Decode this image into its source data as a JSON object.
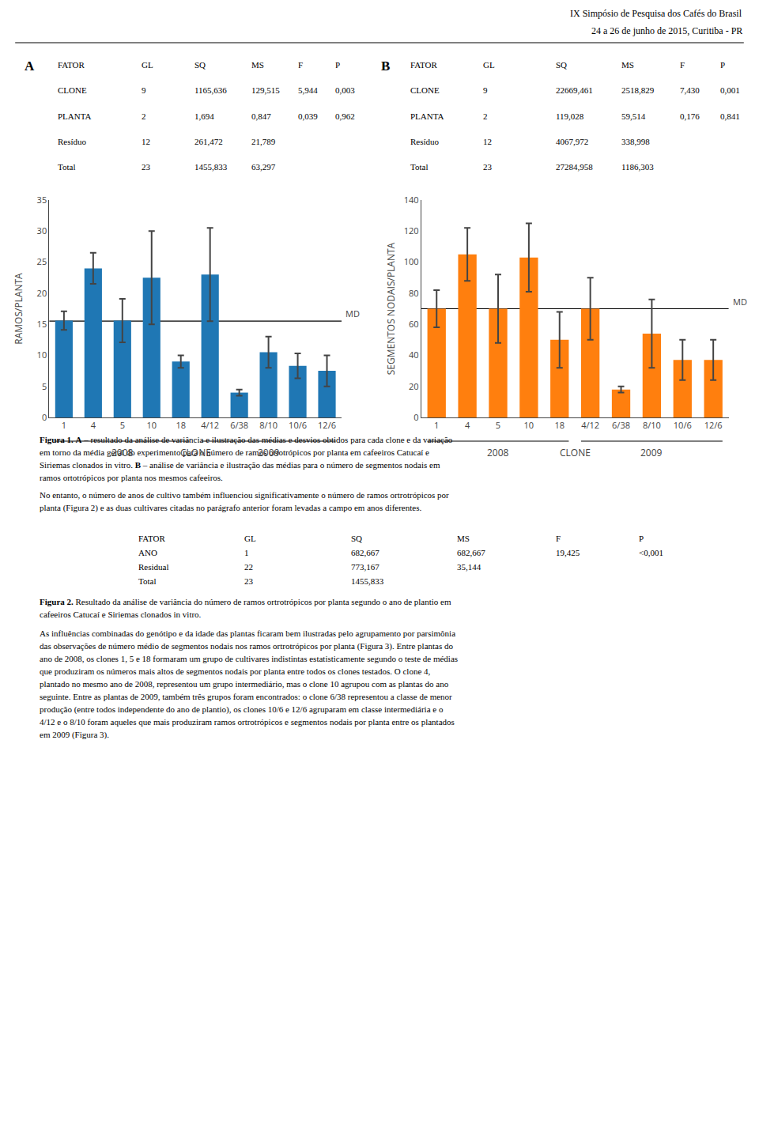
{
  "chart_data": [
    {
      "type": "bar",
      "ylabel": "RAMOS/PLANTA",
      "xlabel": "CLONE",
      "categories": [
        "1",
        "4",
        "5",
        "10",
        "18",
        "4/12",
        "6/38",
        "8/10",
        "10/6",
        "12/6"
      ],
      "values": [
        15.6,
        24.0,
        15.6,
        22.5,
        9.0,
        23.0,
        4.0,
        10.5,
        8.3,
        7.5
      ],
      "errors": [
        1.5,
        2.5,
        3.5,
        7.5,
        1.0,
        7.5,
        0.5,
        2.5,
        2.0,
        2.5
      ],
      "ylim": [
        0,
        35
      ],
      "yticks": [
        0,
        5,
        10,
        15,
        20,
        25,
        30,
        35
      ],
      "grid": false,
      "reference_line": {
        "value": 15.5,
        "label": "MD"
      },
      "groups": [
        {
          "label": "2008",
          "categories": [
            "1",
            "4",
            "5",
            "10",
            "18"
          ]
        },
        {
          "label": "2009",
          "categories": [
            "4/12",
            "6/38",
            "8/10",
            "10/6",
            "12/6"
          ]
        }
      ]
    },
    {
      "type": "bar",
      "ylabel": "SEGMENTOS NODAIS/PLANTA",
      "xlabel": "CLONE",
      "categories": [
        "1",
        "4",
        "5",
        "10",
        "18",
        "4/12",
        "6/38",
        "8/10",
        "10/6",
        "12/6"
      ],
      "values": [
        70.0,
        105.0,
        70.0,
        103.0,
        50.0,
        70.0,
        18.0,
        54.0,
        37.0,
        37.0
      ],
      "errors": [
        12.0,
        17.0,
        22.0,
        22.0,
        18.0,
        20.0,
        2.0,
        22.0,
        13.0,
        13.0
      ],
      "ylim": [
        0,
        140
      ],
      "yticks": [
        0,
        20,
        40,
        60,
        80,
        100,
        120,
        140
      ],
      "grid": false,
      "reference_line": {
        "value": 70.0,
        "label": "MD"
      },
      "groups": [
        {
          "label": "2008",
          "categories": [
            "1",
            "4",
            "5",
            "10",
            "18"
          ]
        },
        {
          "label": "2009",
          "categories": [
            "4/12",
            "6/38",
            "8/10",
            "10/6",
            "12/6"
          ]
        }
      ]
    }
  ],
  "header": [
    "IX Simpósio de Pesquisa dos Cafés do Brasil",
    "24 a 26 de junho de 2015, Curitiba - PR"
  ],
  "tables": [
    {
      "label": "A",
      "headers": [
        "FATOR",
        "GL",
        "SQ",
        "MS",
        "F",
        "P"
      ],
      "rows": [
        [
          "CLONE",
          "9",
          "1165,636",
          "129,515",
          "5,944",
          "0,003"
        ],
        [
          "PLANTA",
          "2",
          "1,694",
          "0,847",
          "0,039",
          "0,962"
        ],
        [
          "Resíduo",
          "12",
          "261,472",
          "21,789",
          "",
          ""
        ],
        [
          "Total",
          "23",
          "1455,833",
          "63,297",
          "",
          ""
        ]
      ]
    },
    {
      "label": "B",
      "headers": [
        "FATOR",
        "GL",
        "SQ",
        "MS",
        "F",
        "P"
      ],
      "rows": [
        [
          "CLONE",
          "9",
          "22669,461",
          "2518,829",
          "7,430",
          "0,001"
        ],
        [
          "PLANTA",
          "2",
          "119,028",
          "59,514",
          "0,176",
          "0,841"
        ],
        [
          "Resíduo",
          "12",
          "4067,972",
          "338,998",
          "",
          ""
        ],
        [
          "Total",
          "23",
          "27284,958",
          "1186,303",
          "",
          ""
        ]
      ]
    },
    {
      "headers": [
        "FATOR",
        "GL",
        "SQ",
        "MS",
        "F",
        "P"
      ],
      "rows": [
        [
          "ANO",
          "1",
          "682,667",
          "682,667",
          "19,425",
          "<0,001"
        ],
        [
          "Residual",
          "22",
          "773,167",
          "35,144",
          "",
          ""
        ],
        [
          "Total",
          "23",
          "1455,833",
          "",
          "",
          ""
        ]
      ]
    }
  ],
  "texts": [
    [
      [
        {
          "text": "Figura 1.",
          "bold": true
        },
        {
          "text": "A",
          "bold": true
        },
        " – resultado da análise de variância e ilustração das médias e desvios obtidos para cada clone e da variação"
      ],
      [
        "em torno da média geral do experimento para o número de ramos ortotrópicos por planta em cafeeiros Catucaí e"
      ],
      [
        "Siriemas clonados in vitro. ",
        {
          "text": "B",
          "bold": true
        },
        " – análise de variância e ilustração das médias para o número de segmentos nodais em"
      ],
      [
        "ramos ortotrópicos por planta nos mesmos cafeeiros."
      ]
    ],
    [
      [
        "No entanto, o número de anos de cultivo também influenciou significativamente o número de ramos ortrotrópicos por"
      ],
      [
        "planta (Figura 2) e as duas cultivares citadas no parágrafo anterior foram levadas a campo em anos diferentes."
      ]
    ],
    [
      [
        {
          "text": "Figura 2.",
          "bold": true
        },
        " Resultado da análise de variância do número de ramos ortrotrópicos por planta segundo o ano de plantio em"
      ],
      [
        "cafeeiros Catucaí e Siriemas clonados in vitro."
      ]
    ],
    [
      [
        "As influências combinadas do genótipo e da idade das plantas ficaram bem ilustradas pelo agrupamento por parsimônia"
      ],
      [
        "das observações de número médio de segmentos nodais nos ramos ortrotrópicos por planta (Figura 3). Entre plantas do"
      ],
      [
        "ano de 2008, os clones 1, 5 e 18 formaram um grupo de cultivares indistintas estatisticamente segundo o teste de médias"
      ],
      [
        "que produziram os números mais altos de segmentos nodais por planta entre todos os clones testados. O clone 4,"
      ],
      [
        "plantado no mesmo ano de 2008, representou um grupo intermediário, mas o clone 10 agrupou com as plantas do ano"
      ],
      [
        "seguinte. Entre as plantas de 2009, também três grupos foram encontrados: o clone 6/38 representou a classe de menor"
      ],
      [
        "produção (entre todos independente do ano de plantio), os clones 10/6 e 12/6 agruparam em classe intermediária e o"
      ],
      [
        "4/12 e o 8/10 foram aqueles que mais produziram ramos ortrotrópicos e segmentos nodais por planta entre os plantados"
      ],
      [
        "em 2009 (Figura 3)."
      ]
    ]
  ]
}
